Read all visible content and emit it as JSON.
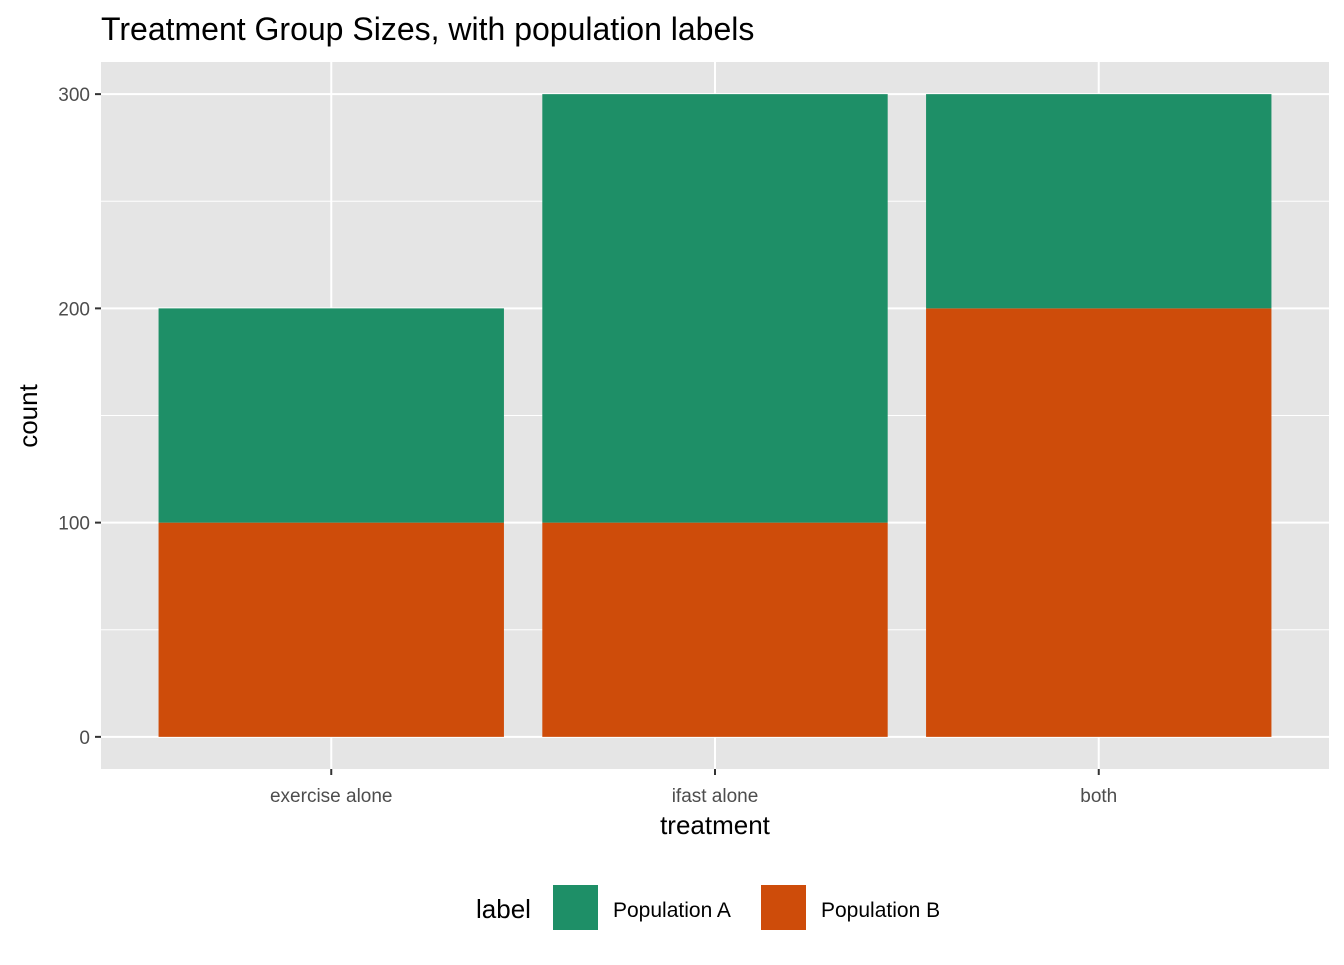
{
  "chart_data": {
    "type": "bar",
    "stacked": true,
    "title": "Treatment Group Sizes, with population labels",
    "xlabel": "treatment",
    "ylabel": "count",
    "categories": [
      "exercise alone",
      "ifast alone",
      "both"
    ],
    "series": [
      {
        "name": "Population B",
        "color": "#CE4C0A",
        "values": [
          100,
          100,
          200
        ]
      },
      {
        "name": "Population A",
        "color": "#1E8F67",
        "values": [
          100,
          200,
          100
        ]
      }
    ],
    "ylim": [
      -15,
      315
    ],
    "yticks": [
      0,
      100,
      200,
      300
    ],
    "grid": true,
    "legend": {
      "title": "label",
      "position": "bottom",
      "entries": [
        "Population A",
        "Population B"
      ]
    }
  }
}
